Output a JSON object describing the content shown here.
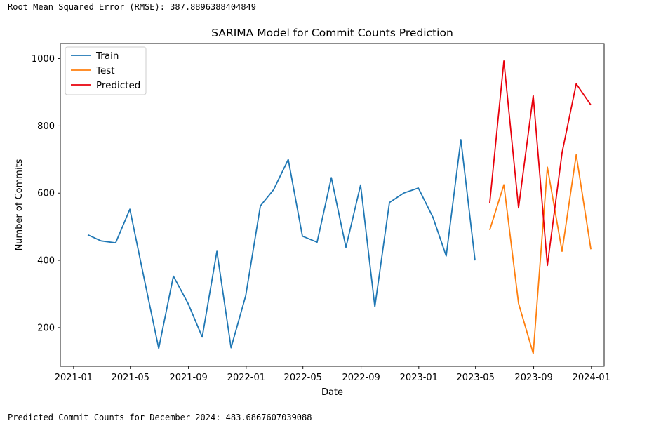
{
  "output": {
    "rmse_line": "Root Mean Squared Error (RMSE): 387.8896388404849",
    "prediction_line": "Predicted Commit Counts for December 2024: 483.6867607039088"
  },
  "chart_data": {
    "type": "line",
    "title": "SARIMA Model for Commit Counts Prediction",
    "xlabel": "Date",
    "ylabel": "Number of Commits",
    "xlim": [
      "2020-12-04",
      "2024-01-28"
    ],
    "ylim": [
      85,
      1045
    ],
    "x_ticks": [
      "2021-01",
      "2021-05",
      "2021-09",
      "2022-01",
      "2022-05",
      "2022-09",
      "2023-01",
      "2023-05",
      "2023-09",
      "2024-01"
    ],
    "y_ticks": [
      200,
      400,
      600,
      800,
      1000
    ],
    "grid": false,
    "legend": "top-left",
    "series": [
      {
        "name": "Train",
        "color": "#1f77b4",
        "x": [
          "2021-01-31",
          "2021-02-28",
          "2021-03-31",
          "2021-04-30",
          "2021-05-31",
          "2021-06-30",
          "2021-07-31",
          "2021-08-31",
          "2021-09-30",
          "2021-10-31",
          "2021-11-30",
          "2021-12-31",
          "2022-01-31",
          "2022-02-28",
          "2022-03-31",
          "2022-04-30",
          "2022-05-31",
          "2022-06-30",
          "2022-07-31",
          "2022-08-31",
          "2022-09-30",
          "2022-10-31",
          "2022-11-30",
          "2022-12-31",
          "2023-01-31",
          "2023-02-28",
          "2023-03-31",
          "2023-04-30"
        ],
        "y": [
          476,
          458,
          452,
          552,
          340,
          138,
          353,
          272,
          172,
          427,
          140,
          295,
          562,
          610,
          700,
          472,
          454,
          646,
          439,
          624,
          262,
          572,
          600,
          615,
          528,
          413,
          759,
          400
        ]
      },
      {
        "name": "Test",
        "color": "#ff7f0e",
        "x": [
          "2023-05-31",
          "2023-06-30",
          "2023-07-31",
          "2023-08-31",
          "2023-09-30",
          "2023-10-31",
          "2023-11-30",
          "2023-12-31"
        ],
        "y": [
          490,
          625,
          272,
          123,
          677,
          427,
          714,
          433
        ]
      },
      {
        "name": "Predicted",
        "color": "#e8000b",
        "x": [
          "2023-05-31",
          "2023-06-30",
          "2023-07-31",
          "2023-08-31",
          "2023-09-30",
          "2023-10-31",
          "2023-11-30",
          "2023-12-31"
        ],
        "y": [
          570,
          993,
          556,
          890,
          385,
          720,
          925,
          862
        ]
      }
    ]
  }
}
